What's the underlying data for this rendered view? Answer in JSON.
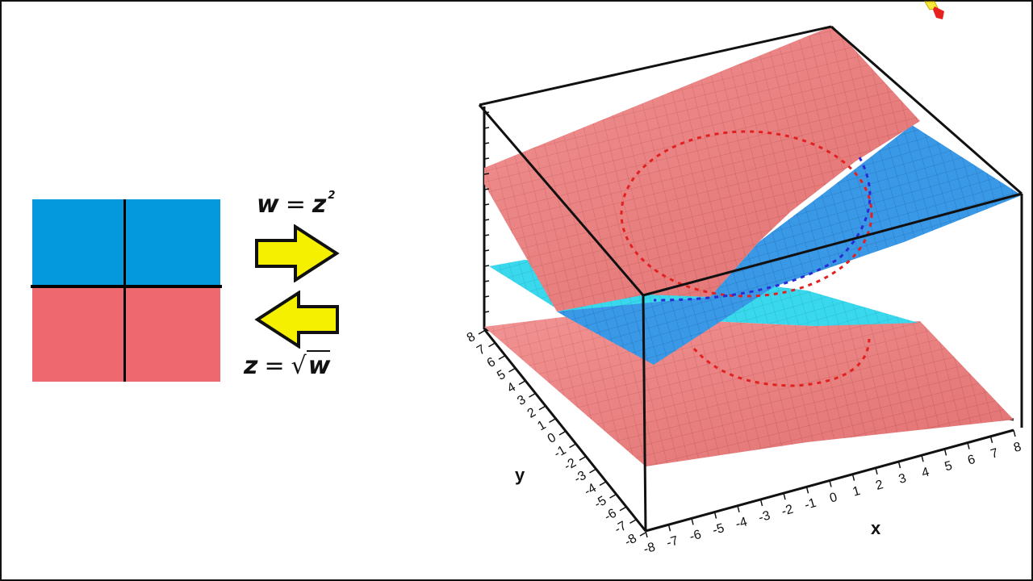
{
  "colors": {
    "upper_half": "#0499dd",
    "lower_half": "#ee6870",
    "arrow_fill": "#f4f000",
    "surface_red": "#f07d7d",
    "surface_blue": "#3d9be6",
    "surface_cyan": "#33d6ea"
  },
  "diagram": {
    "formula_forward_lhs": "w",
    "formula_forward_rhs": "z",
    "formula_forward_exponent": "2",
    "formula_forward_eq": "=",
    "formula_inverse_lhs": "z",
    "formula_inverse_eq": "=",
    "formula_inverse_radical": "√",
    "formula_inverse_radicand": "w"
  },
  "plot3d": {
    "x_label": "x",
    "y_label": "y",
    "x_ticks": [
      "-8",
      "-7",
      "-6",
      "-5",
      "-4",
      "-3",
      "-2",
      "-1",
      "0",
      "1",
      "2",
      "3",
      "4",
      "5",
      "6",
      "7",
      "8"
    ],
    "y_ticks": [
      "8",
      "7",
      "6",
      "5",
      "4",
      "3",
      "2",
      "1",
      "0",
      "-1",
      "-2",
      "-3",
      "-4",
      "-5",
      "-6",
      "-7",
      "-8"
    ],
    "x_range": [
      -8,
      8
    ],
    "y_range": [
      -8,
      8
    ]
  }
}
